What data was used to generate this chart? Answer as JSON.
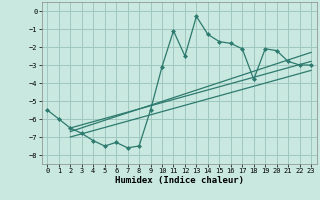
{
  "title": "",
  "xlabel": "Humidex (Indice chaleur)",
  "ylabel": "",
  "x_data": [
    0,
    1,
    2,
    3,
    4,
    5,
    6,
    7,
    8,
    9,
    10,
    11,
    12,
    13,
    14,
    15,
    16,
    17,
    18,
    19,
    20,
    21,
    22,
    23
  ],
  "y_main": [
    -5.5,
    -6.0,
    -6.5,
    -6.8,
    -7.2,
    -7.5,
    -7.3,
    -7.6,
    -7.5,
    -5.5,
    -3.1,
    -1.1,
    -2.5,
    -0.3,
    -1.3,
    -1.7,
    -1.8,
    -2.1,
    -3.8,
    -2.1,
    -2.2,
    -2.8,
    -3.0,
    -3.0
  ],
  "line_color": "#2d7a6e",
  "background_color": "#c8e8e0",
  "grid_color": "#a0c8c0",
  "xlim": [
    -0.5,
    23.5
  ],
  "ylim": [
    -8.5,
    0.5
  ],
  "xticks": [
    0,
    1,
    2,
    3,
    4,
    5,
    6,
    7,
    8,
    9,
    10,
    11,
    12,
    13,
    14,
    15,
    16,
    17,
    18,
    19,
    20,
    21,
    22,
    23
  ],
  "yticks": [
    0,
    -1,
    -2,
    -3,
    -4,
    -5,
    -6,
    -7,
    -8
  ],
  "trend1_x": [
    2.0,
    23.0
  ],
  "trend1_y": [
    -6.5,
    -2.8
  ],
  "trend2_x": [
    2.0,
    23.0
  ],
  "trend2_y": [
    -6.7,
    -2.3
  ],
  "trend3_x": [
    2.0,
    23.0
  ],
  "trend3_y": [
    -7.0,
    -3.3
  ]
}
